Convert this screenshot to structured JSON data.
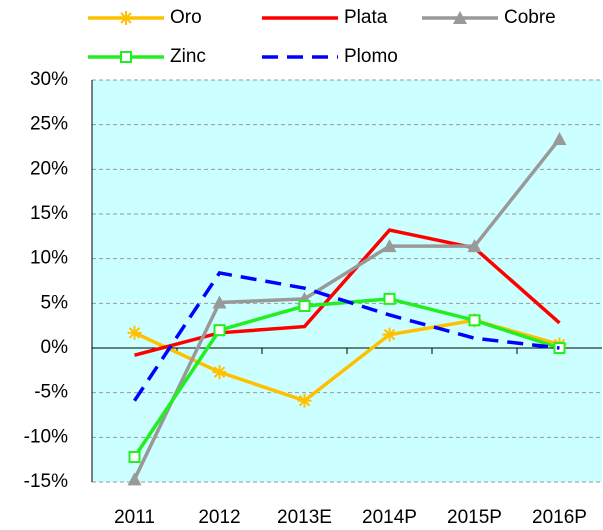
{
  "chart_data": {
    "type": "line",
    "categories": [
      "2011",
      "2012",
      "2013E",
      "2014P",
      "2015P",
      "2016P"
    ],
    "series": [
      {
        "name": "Oro",
        "color": "#ffc000",
        "marker": "star",
        "dashed": false,
        "values": [
          1.7,
          -2.7,
          -5.9,
          1.5,
          3.1,
          0.4
        ]
      },
      {
        "name": "Plata",
        "color": "#ff0000",
        "marker": null,
        "dashed": false,
        "values": [
          -0.8,
          1.7,
          2.4,
          13.2,
          11.2,
          2.8
        ]
      },
      {
        "name": "Cobre",
        "color": "#999999",
        "marker": "triangle",
        "dashed": false,
        "values": [
          -14.7,
          5.1,
          5.5,
          11.4,
          11.4,
          23.4
        ]
      },
      {
        "name": "Zinc",
        "color": "#22ee22",
        "marker": "square",
        "dashed": false,
        "values": [
          -12.2,
          2.0,
          4.7,
          5.5,
          3.1,
          0.0
        ]
      },
      {
        "name": "Plomo",
        "color": "#0000ff",
        "marker": null,
        "dashed": true,
        "values": [
          -5.9,
          8.4,
          6.7,
          3.7,
          1.1,
          0.0
        ]
      }
    ],
    "ylim": [
      -15,
      30
    ],
    "yticks": [
      {
        "value": -15,
        "label": "-15%"
      },
      {
        "value": -10,
        "label": "-10%"
      },
      {
        "value": -5,
        "label": "-5%"
      },
      {
        "value": 0,
        "label": "0%"
      },
      {
        "value": 5,
        "label": "5%"
      },
      {
        "value": 10,
        "label": "10%"
      },
      {
        "value": 15,
        "label": "15%"
      },
      {
        "value": 20,
        "label": "20%"
      },
      {
        "value": 25,
        "label": "25%"
      },
      {
        "value": 30,
        "label": "30%"
      }
    ],
    "grid": true,
    "background": "#ccffff"
  }
}
